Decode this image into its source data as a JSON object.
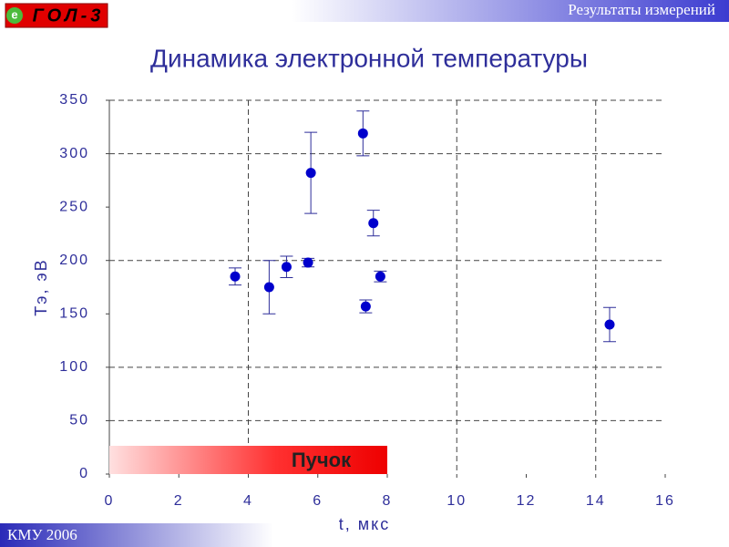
{
  "header": {
    "logo_e": "е",
    "logo_text": "ГОЛ-3",
    "section": "Результаты измерений"
  },
  "footer": {
    "text": "КМУ 2006"
  },
  "chart_data": {
    "type": "errorbar",
    "title": "Динамика электронной температуры",
    "xlabel": "t, мкс",
    "ylabel": "Tэ, эВ",
    "xlim": [
      0,
      16
    ],
    "xticks": [
      0,
      2,
      4,
      6,
      8,
      10,
      12,
      14,
      16
    ],
    "ylim": [
      0,
      350
    ],
    "yticks": [
      0,
      50,
      100,
      150,
      200,
      250,
      300,
      350
    ],
    "grid": true,
    "xgrid": [
      4,
      10,
      14
    ],
    "ygrid": [
      50,
      100,
      200,
      300,
      350
    ],
    "series": [
      {
        "color": "#0000cc",
        "x": [
          3.62,
          4.6,
          5.1,
          5.72,
          5.8,
          7.3,
          7.38,
          7.6,
          7.8,
          14.4
        ],
        "values": [
          185,
          175,
          194,
          198,
          282,
          319,
          157,
          235,
          185,
          140
        ],
        "errors": [
          8,
          25,
          10,
          4,
          38,
          21,
          6,
          12,
          5,
          16
        ]
      }
    ],
    "band": {
      "label": "Пучок",
      "x": [
        0,
        8
      ]
    }
  }
}
